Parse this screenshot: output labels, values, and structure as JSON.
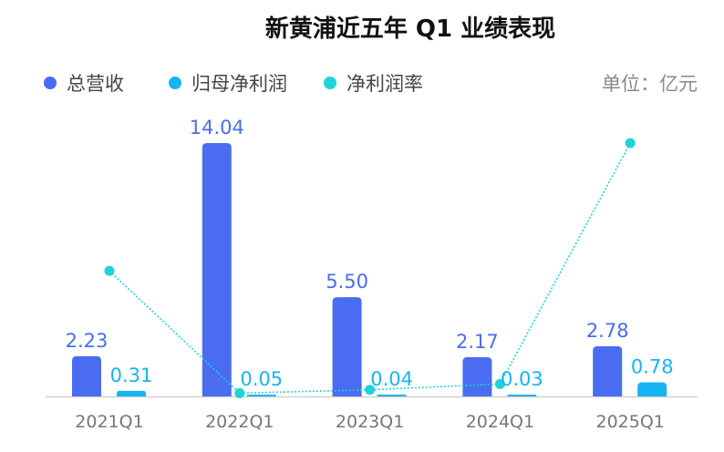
{
  "chart_data": {
    "type": "bar",
    "title": "新黄浦近五年 Q1 业绩表现",
    "unit_label": "单位：亿元",
    "categories": [
      "2021Q1",
      "2022Q1",
      "2023Q1",
      "2024Q1",
      "2025Q1"
    ],
    "series": [
      {
        "name": "总营收",
        "type": "bar",
        "color": "#4a6cf0",
        "values": [
          2.23,
          14.04,
          5.5,
          2.17,
          2.78
        ],
        "labels": [
          "2.23",
          "14.04",
          "5.50",
          "2.17",
          "2.78"
        ]
      },
      {
        "name": "归母净利润",
        "type": "bar",
        "color": "#16b4f2",
        "values": [
          0.31,
          0.05,
          0.04,
          0.03,
          0.78
        ],
        "labels": [
          "0.31",
          "0.05",
          "0.04",
          "0.03",
          "0.78"
        ]
      },
      {
        "name": "净利润率",
        "type": "line",
        "color": "#1fd3d8",
        "values": [
          13.9,
          0.36,
          0.73,
          1.38,
          28.06
        ],
        "unit": "%"
      }
    ],
    "ylim": [
      0,
      14.04
    ],
    "legend_position": "top-left",
    "grid": false
  }
}
